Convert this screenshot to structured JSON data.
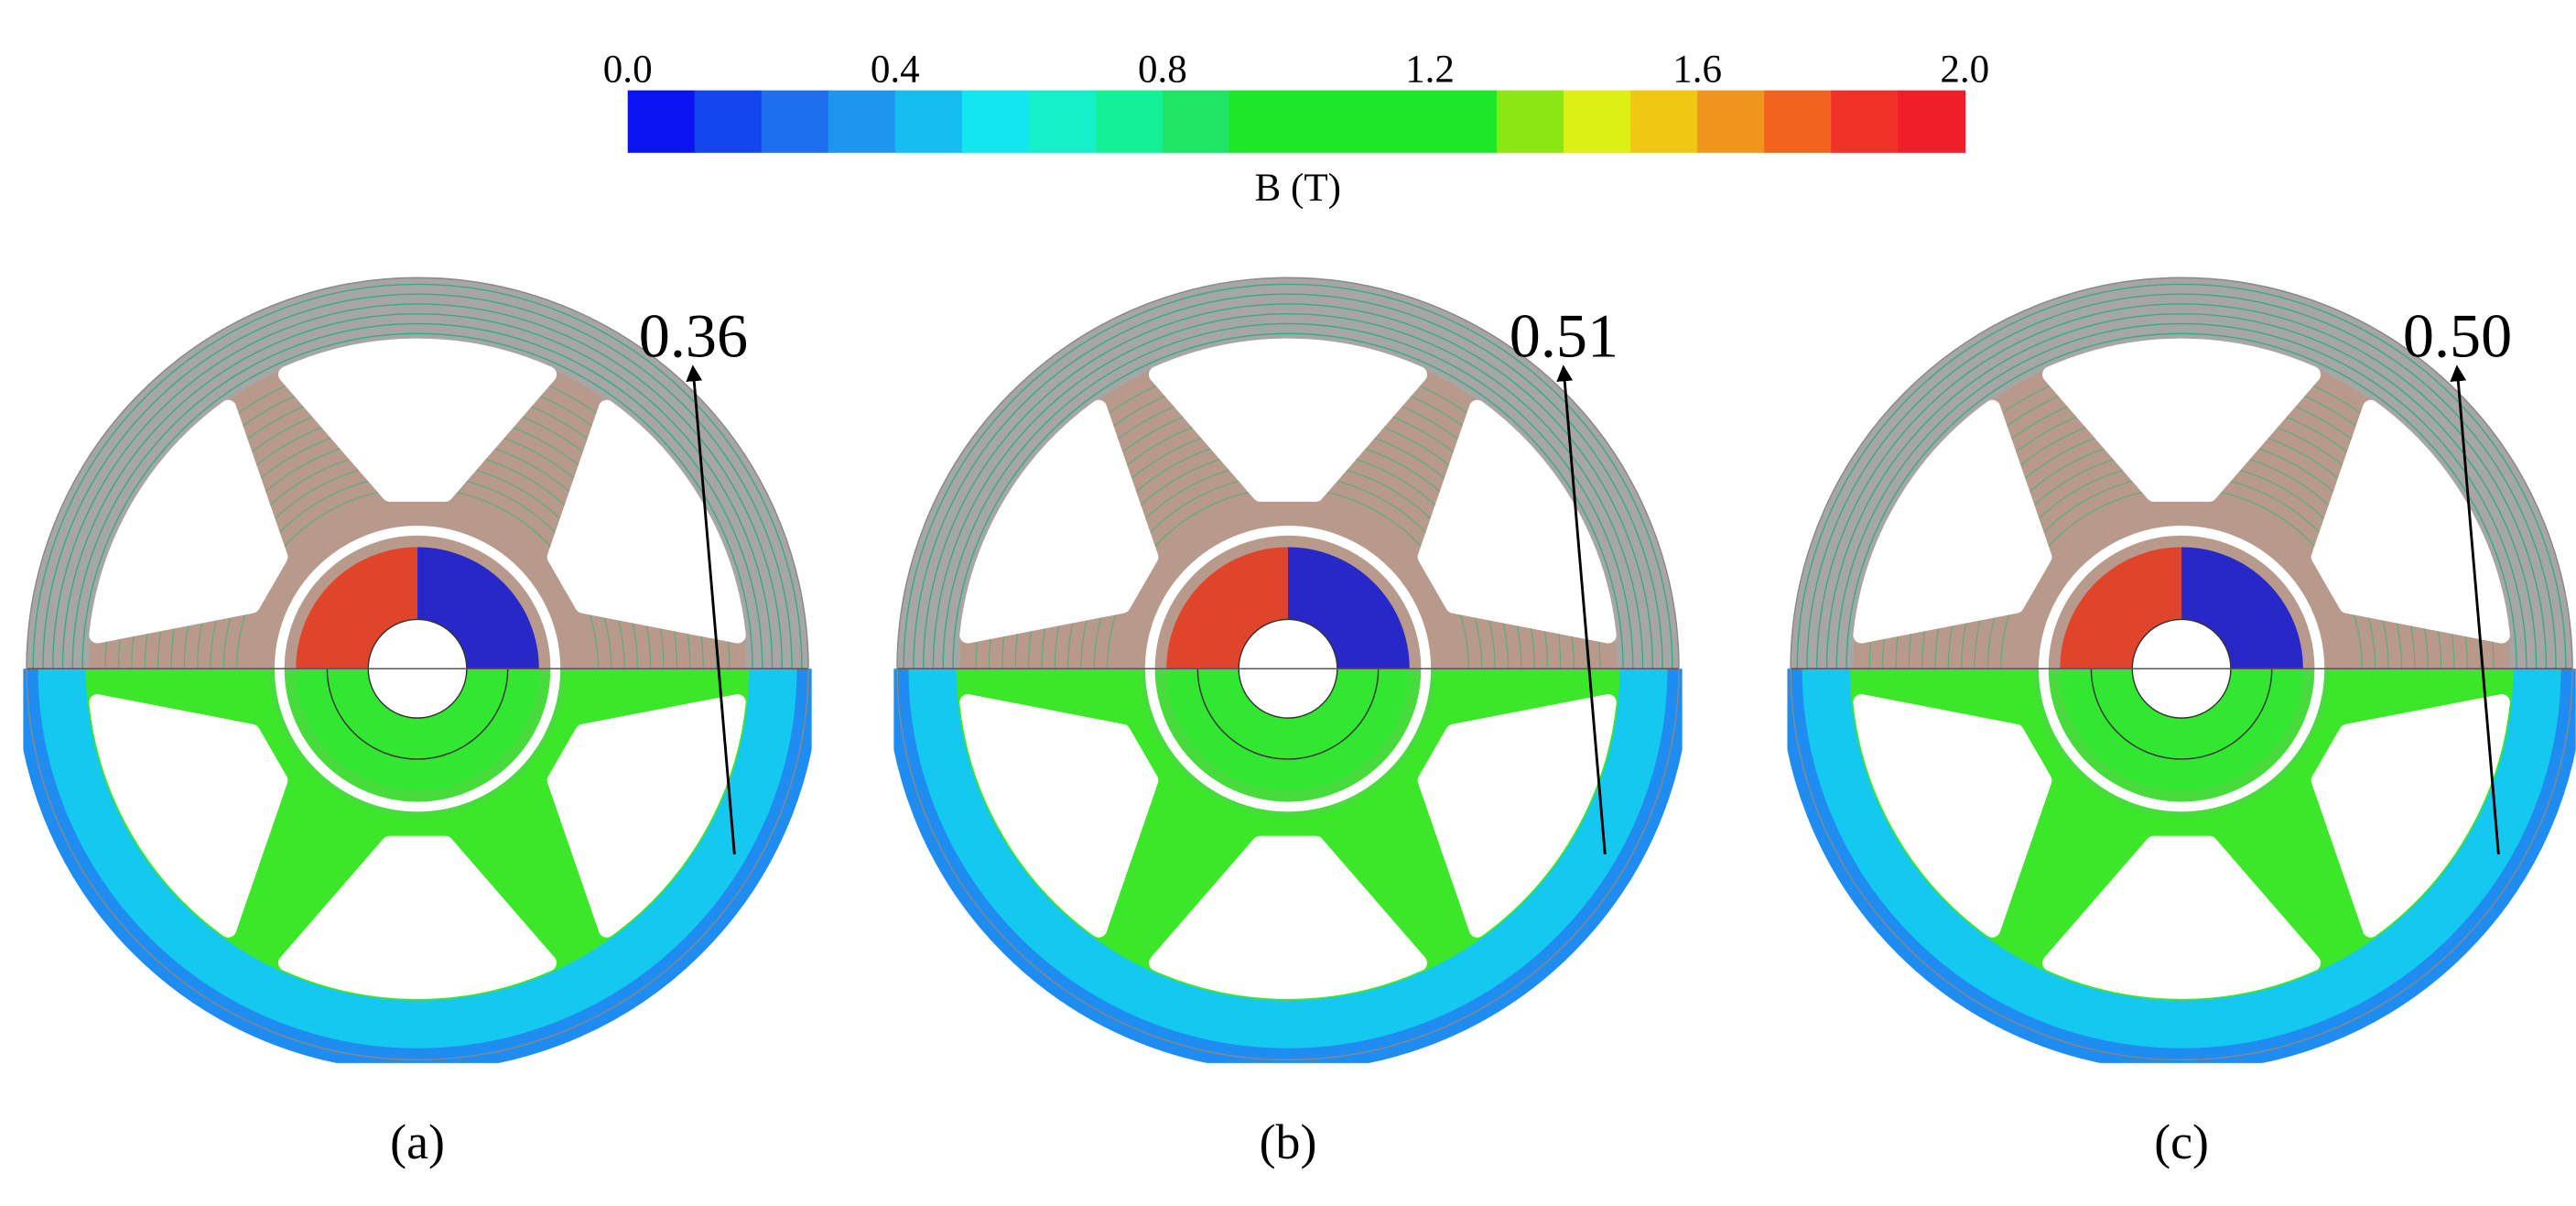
{
  "colorbar": {
    "range": [
      0,
      2
    ],
    "ticks": [
      {
        "value": 0,
        "label": "0.0"
      },
      0.4,
      0.8,
      1.2,
      1.6,
      {
        "value": 2,
        "label": "2.0"
      }
    ],
    "colors": [
      "#0a14f0",
      "#1446f0",
      "#1e6ef0",
      "#1e96f0",
      "#14bef0",
      "#14e6f0",
      "#14f0c8",
      "#14f096",
      "#1ee664",
      "#1ee628",
      "#1ee628",
      "#1ee628",
      "#1ee628",
      "#8ce614",
      "#dcf014",
      "#f0c814",
      "#f0961e",
      "#f0641e",
      "#f03228",
      "#f01e28"
    ],
    "label": "B (T)"
  },
  "panels": [
    {
      "annotation": "0.36",
      "caption": "(a)"
    },
    {
      "annotation": "0.51",
      "caption": "(b)"
    },
    {
      "annotation": "0.50",
      "caption": "(c)"
    }
  ]
}
